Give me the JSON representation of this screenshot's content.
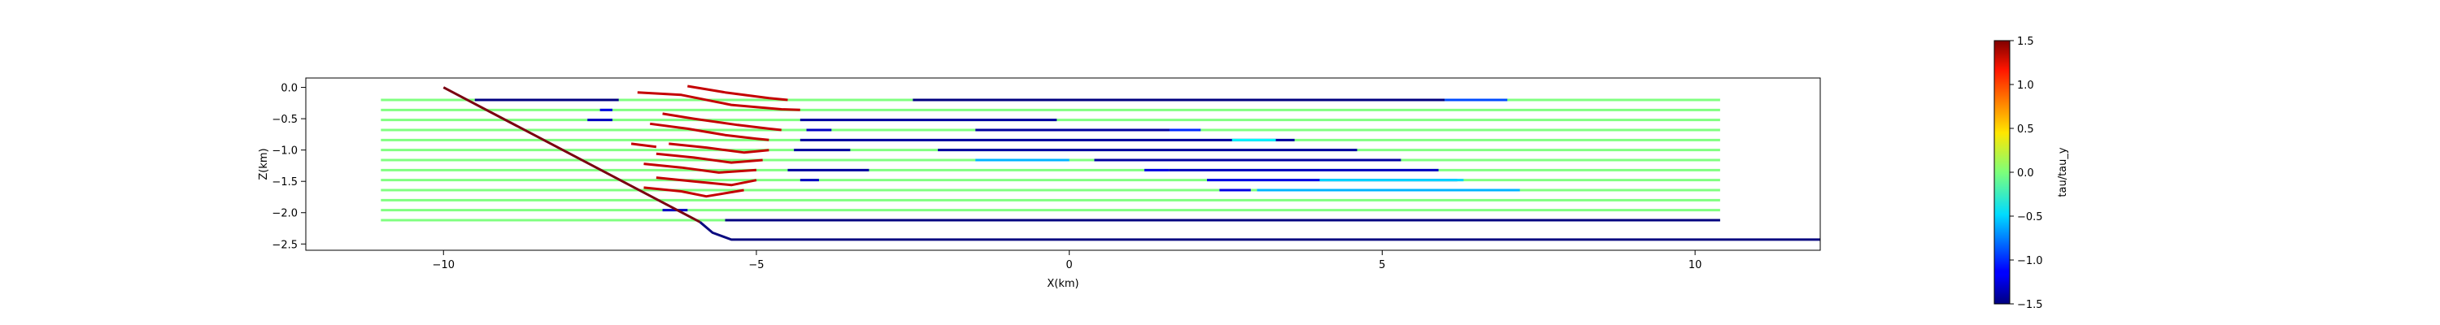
{
  "chart_data": {
    "type": "line",
    "xlabel": "X(km)",
    "ylabel": "Z(km)",
    "xlim": [
      -12.2,
      12.0
    ],
    "ylim": [
      -2.6,
      0.15
    ],
    "xticks": [
      -10,
      -5,
      0,
      5,
      10
    ],
    "xtick_labels": [
      "−10",
      "−5",
      "0",
      "5",
      "10"
    ],
    "yticks": [
      0.0,
      -0.5,
      -1.0,
      -1.5,
      -2.0,
      -2.5
    ],
    "ytick_labels": [
      "0.0",
      "−0.5",
      "−1.0",
      "−1.5",
      "−2.0",
      "−2.5"
    ],
    "grid": false,
    "fault": {
      "color": "#7a0010",
      "x": [
        -10.0,
        -5.9
      ],
      "z": [
        0.0,
        -2.15
      ]
    },
    "decollement": {
      "color": "#0b0b80",
      "x": [
        -5.9,
        -5.7,
        -5.4,
        12.0
      ],
      "z": [
        -2.15,
        -2.32,
        -2.43,
        -2.43
      ]
    },
    "colorbar": {
      "label": "tau/tau_y",
      "cmap": "jet",
      "min": -1.5,
      "max": 1.5,
      "ticks": [
        1.5,
        1.0,
        0.5,
        0.0,
        -0.5,
        -1.0,
        -1.5
      ],
      "tick_labels": [
        "1.5",
        "1.0",
        "0.5",
        "0.0",
        "−0.5",
        "−1.0",
        "−1.5"
      ]
    },
    "layers": {
      "z_values": [
        -0.2,
        -0.36,
        -0.52,
        -0.68,
        -0.84,
        -1.0,
        -1.16,
        -1.32,
        -1.48,
        -1.64,
        -1.8,
        -1.96,
        -2.12
      ],
      "x_start": -11.0,
      "x_end": 10.4,
      "background_value": 0.0,
      "fold_zone_value": 1.1,
      "fold_zone_x": [
        -7.0,
        -4.4
      ]
    },
    "segments": [
      {
        "layer": 0,
        "x": [
          -9.5,
          -7.2
        ],
        "value": -1.5
      },
      {
        "layer": 0,
        "x": [
          -2.5,
          6.0
        ],
        "value": -1.5
      },
      {
        "layer": 0,
        "x": [
          6.0,
          7.0
        ],
        "value": -0.9
      },
      {
        "layer": 1,
        "x": [
          -7.5,
          -7.3
        ],
        "value": -1.2
      },
      {
        "layer": 2,
        "x": [
          -7.7,
          -7.3
        ],
        "value": -1.3
      },
      {
        "layer": 2,
        "x": [
          -4.3,
          -0.2
        ],
        "value": -1.4
      },
      {
        "layer": 3,
        "x": [
          -4.2,
          -3.8
        ],
        "value": -1.3
      },
      {
        "layer": 3,
        "x": [
          -1.5,
          1.7
        ],
        "value": -1.4
      },
      {
        "layer": 3,
        "x": [
          1.6,
          2.1
        ],
        "value": -1.0
      },
      {
        "layer": 4,
        "x": [
          -4.3,
          3.6
        ],
        "value": -1.4
      },
      {
        "layer": 4,
        "x": [
          2.6,
          3.3
        ],
        "value": -0.4
      },
      {
        "layer": 5,
        "x": [
          -4.4,
          -3.5
        ],
        "value": -1.4
      },
      {
        "layer": 5,
        "x": [
          -2.1,
          4.6
        ],
        "value": -1.4
      },
      {
        "layer": 6,
        "x": [
          -1.5,
          0.0
        ],
        "value": -0.6
      },
      {
        "layer": 6,
        "x": [
          0.4,
          5.3
        ],
        "value": -1.4
      },
      {
        "layer": 7,
        "x": [
          -4.5,
          -3.2
        ],
        "value": -1.4
      },
      {
        "layer": 7,
        "x": [
          1.2,
          1.6
        ],
        "value": -1.2
      },
      {
        "layer": 7,
        "x": [
          1.6,
          5.9
        ],
        "value": -1.3
      },
      {
        "layer": 8,
        "x": [
          -4.3,
          -4.0
        ],
        "value": -1.3
      },
      {
        "layer": 8,
        "x": [
          2.2,
          6.2
        ],
        "value": -1.2
      },
      {
        "layer": 8,
        "x": [
          4.0,
          6.3
        ],
        "value": -0.5
      },
      {
        "layer": 9,
        "x": [
          2.4,
          2.9
        ],
        "value": -1.2
      },
      {
        "layer": 9,
        "x": [
          3.0,
          7.2
        ],
        "value": -0.6
      },
      {
        "layer": 11,
        "x": [
          -6.5,
          -6.1
        ],
        "value": -1.3
      },
      {
        "layer": 12,
        "x": [
          -5.5,
          10.4
        ],
        "value": -1.5
      }
    ],
    "folds": [
      {
        "value": 1.3,
        "x": [
          -6.1,
          -5.5,
          -4.8,
          -4.5
        ],
        "z": [
          0.02,
          -0.08,
          -0.17,
          -0.2
        ]
      },
      {
        "value": 1.3,
        "x": [
          -6.9,
          -6.2,
          -5.4,
          -4.6,
          -4.3
        ],
        "z": [
          -0.08,
          -0.12,
          -0.28,
          -0.35,
          -0.36
        ]
      },
      {
        "value": 1.3,
        "x": [
          -6.5,
          -6.0,
          -5.3,
          -4.8,
          -4.6
        ],
        "z": [
          -0.42,
          -0.5,
          -0.6,
          -0.66,
          -0.68
        ]
      },
      {
        "value": 1.3,
        "x": [
          -6.7,
          -6.1,
          -5.5,
          -5.0,
          -4.8
        ],
        "z": [
          -0.58,
          -0.66,
          -0.76,
          -0.82,
          -0.84
        ]
      },
      {
        "value": 1.3,
        "x": [
          -7.0,
          -6.6
        ],
        "z": [
          -0.9,
          -0.95
        ]
      },
      {
        "value": 1.3,
        "x": [
          -6.4,
          -5.8,
          -5.2,
          -4.8
        ],
        "z": [
          -0.9,
          -0.96,
          -1.04,
          -1.0
        ]
      },
      {
        "value": 1.3,
        "x": [
          -6.6,
          -6.0,
          -5.4,
          -4.9
        ],
        "z": [
          -1.06,
          -1.12,
          -1.2,
          -1.16
        ]
      },
      {
        "value": 1.3,
        "x": [
          -6.8,
          -6.2,
          -5.6,
          -5.0
        ],
        "z": [
          -1.22,
          -1.28,
          -1.36,
          -1.32
        ]
      },
      {
        "value": 1.3,
        "x": [
          -6.6,
          -6.0,
          -5.4,
          -5.0
        ],
        "z": [
          -1.44,
          -1.5,
          -1.56,
          -1.48
        ]
      },
      {
        "value": 1.3,
        "x": [
          -6.8,
          -6.2,
          -5.8,
          -5.2
        ],
        "z": [
          -1.6,
          -1.66,
          -1.74,
          -1.64
        ]
      }
    ]
  }
}
